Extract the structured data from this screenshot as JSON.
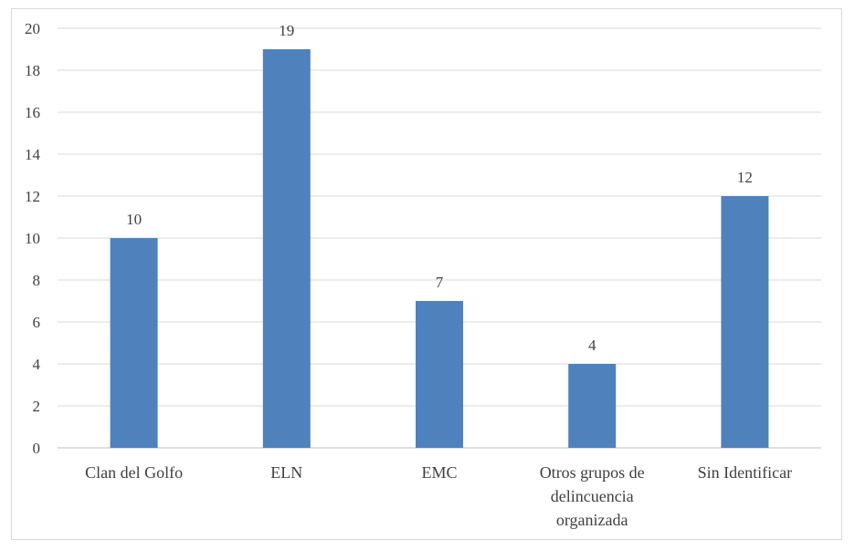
{
  "chart_data": {
    "type": "bar",
    "categories": [
      "Clan del Golfo",
      "ELN",
      "EMC",
      "Otros grupos de delincuencia organizada",
      "Sin Identificar"
    ],
    "category_lines": [
      [
        "Clan del Golfo"
      ],
      [
        "ELN"
      ],
      [
        "EMC"
      ],
      [
        "Otros grupos de",
        "delincuencia",
        "organizada"
      ],
      [
        "Sin Identificar"
      ]
    ],
    "values": [
      10,
      19,
      7,
      4,
      12
    ],
    "data_labels": [
      "10",
      "19",
      "7",
      "4",
      "12"
    ],
    "ylim": [
      0,
      20
    ],
    "yticks": [
      "0",
      "2",
      "4",
      "6",
      "8",
      "10",
      "12",
      "14",
      "16",
      "18",
      "20"
    ],
    "title": "",
    "xlabel": "",
    "ylabel": "",
    "grid": true,
    "legend": "none",
    "bar_color": "#4f81bd",
    "grid_color": "#d9d9d9"
  }
}
